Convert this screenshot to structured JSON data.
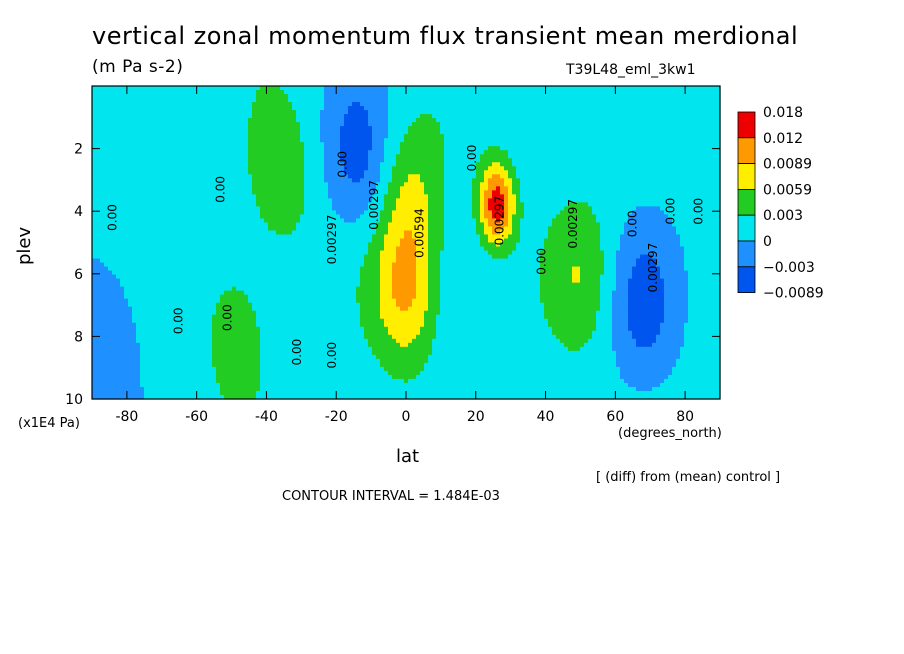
{
  "chart_data": {
    "type": "heatmap",
    "title": "vertical zonal momentum flux transient mean merdional",
    "units": "(m Pa s-2)",
    "run_label": "T39L48_eml_3kw1",
    "xlabel": "lat",
    "x_units": "(degrees_north)",
    "ylabel": "plev",
    "y_units": "(x1E4 Pa)",
    "xlim": [
      -90,
      90
    ],
    "ylim": [
      10,
      0
    ],
    "x_ticks": [
      "-80",
      "-60",
      "-40",
      "-20",
      "0",
      "20",
      "40",
      "60",
      "80"
    ],
    "y_ticks": [
      "2",
      "4",
      "6",
      "8",
      "10"
    ],
    "colorbar": {
      "levels": [
        "0.018",
        "0.012",
        "0.0089",
        "0.0059",
        "0.003",
        "0",
        "−0.003",
        "−0.0089"
      ],
      "colors": [
        "#ee0000",
        "#ff9900",
        "#ffee00",
        "#22cc22",
        "#00e5ee",
        "#1e90ff",
        "#0055ee"
      ],
      "level_values": [
        -0.0089,
        -0.003,
        0,
        0.003,
        0.0059,
        0.0089,
        0.012,
        0.018
      ]
    },
    "contour_labels": [
      "0.00",
      "0.00297",
      "0.00594"
    ],
    "features": [
      {
        "lat": 26,
        "plev": 3.8,
        "value": 0.013
      },
      {
        "lat": 0,
        "plev": 6.5,
        "value": 0.008
      },
      {
        "lat": 2,
        "plev": 3.5,
        "value": 0.0045
      },
      {
        "lat": -48,
        "plev": 8,
        "value": 0.004
      },
      {
        "lat": 50,
        "plev": 6,
        "value": 0.004
      },
      {
        "lat": -36,
        "plev": 3,
        "value": 0.004
      },
      {
        "lat": -14,
        "plev": 2.2,
        "value": -0.005
      },
      {
        "lat": 68,
        "plev": 7,
        "value": -0.005
      },
      {
        "lat": -85,
        "plev": 8.5,
        "value": -0.004
      }
    ],
    "diff_note": "[ (diff) from (mean) control ]",
    "contour_interval": "CONTOUR INTERVAL = 1.484E-03"
  }
}
